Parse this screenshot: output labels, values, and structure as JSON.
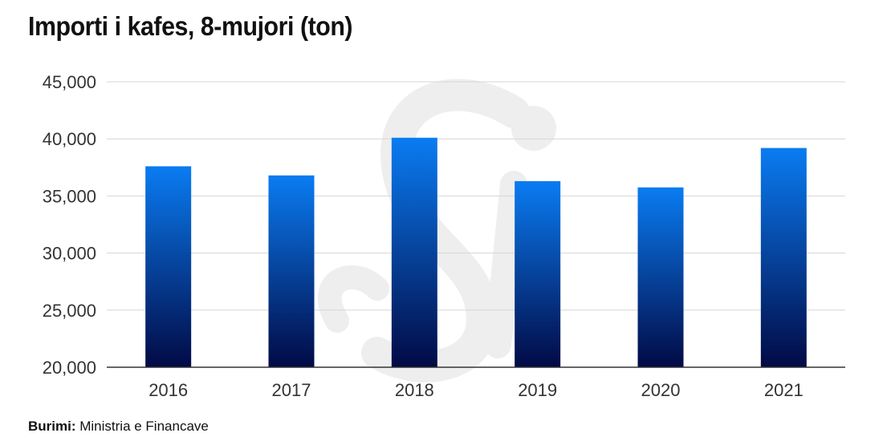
{
  "chart_data": {
    "type": "bar",
    "title": "Importi i kafes, 8-mujori (ton)",
    "categories": [
      "2016",
      "2017",
      "2018",
      "2019",
      "2020",
      "2021"
    ],
    "values": [
      37600,
      36800,
      40100,
      36300,
      35750,
      39200
    ],
    "ylim": [
      20000,
      45000
    ],
    "yticks": [
      "20,000",
      "25,000",
      "30,000",
      "35,000",
      "40,000",
      "45,000"
    ],
    "xlabel": "",
    "ylabel": "",
    "grid": true,
    "legend": "none",
    "colors": {
      "bar_top": "#0a7cf2",
      "bar_bottom": "#020a45",
      "grid": "#d6d6d6",
      "axis": "#333333"
    }
  },
  "source": {
    "label": "Burimi:",
    "text": "Ministria e Financave"
  },
  "watermark": {
    "icon": "si-logo-watermark",
    "color": "#eeeeee"
  }
}
